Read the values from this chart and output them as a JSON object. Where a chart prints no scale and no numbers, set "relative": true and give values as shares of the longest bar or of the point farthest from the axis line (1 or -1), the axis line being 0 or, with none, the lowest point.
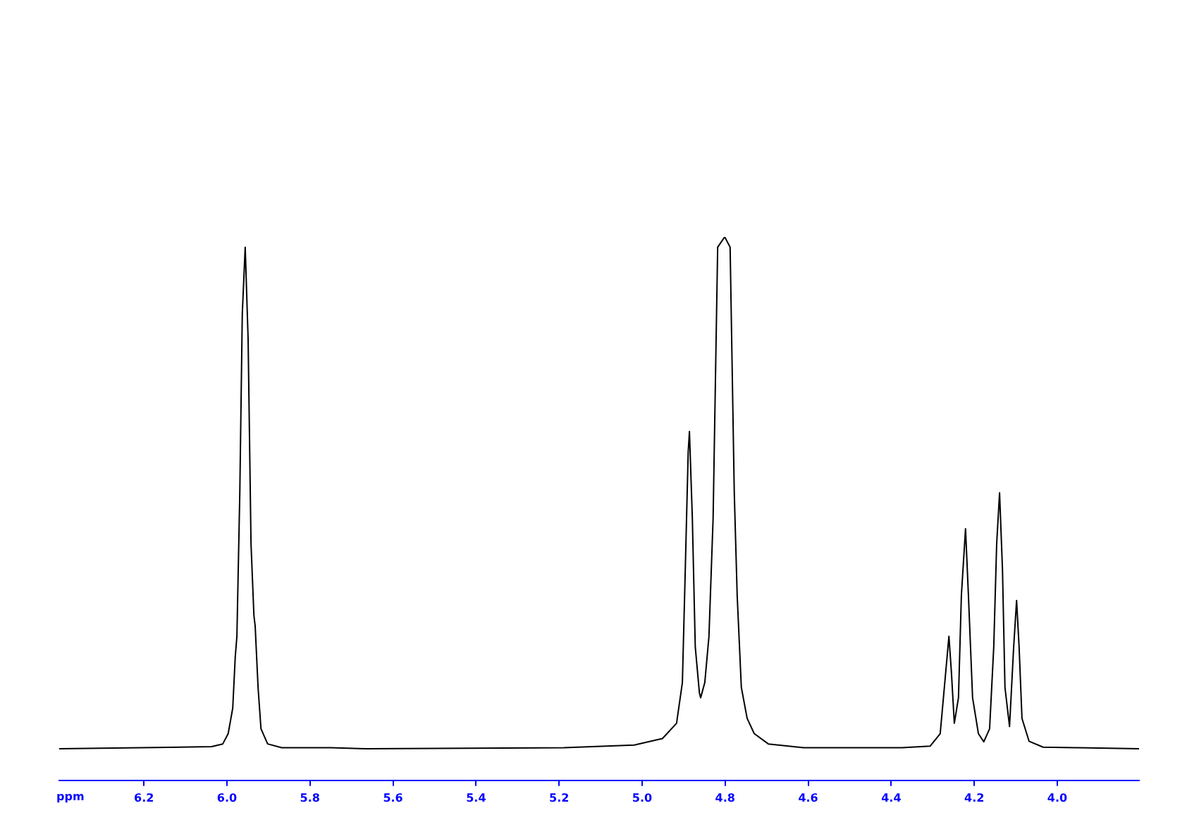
{
  "chart_data": {
    "type": "line",
    "relative": true,
    "xlabel": "ppm",
    "grid": false,
    "legend": false,
    "marker": "none",
    "line_style": "solid",
    "xlim": [
      6.404,
      3.803
    ],
    "xticks": [
      {
        "value": 6.2,
        "label": "6.2"
      },
      {
        "value": 6.0,
        "label": "6.0"
      },
      {
        "value": 5.8,
        "label": "5.8"
      },
      {
        "value": 5.6,
        "label": "5.6"
      },
      {
        "value": 5.4,
        "label": "5.4"
      },
      {
        "value": 5.2,
        "label": "5.2"
      },
      {
        "value": 5.0,
        "label": "5.0"
      },
      {
        "value": 4.8,
        "label": "4.8"
      },
      {
        "value": 4.6,
        "label": "4.6"
      },
      {
        "value": 4.4,
        "label": "4.4"
      },
      {
        "value": 4.2,
        "label": "4.2"
      },
      {
        "value": 4.0,
        "label": "4.0"
      }
    ],
    "series": [
      {
        "color": "#000000",
        "x": [
          6.404,
          6.207,
          6.037,
          6.01,
          5.997,
          5.986,
          5.98,
          5.976,
          5.969,
          5.963,
          5.956,
          5.949,
          5.942,
          5.935,
          5.932,
          5.925,
          5.918,
          5.902,
          5.868,
          5.749,
          5.664,
          5.188,
          5.019,
          4.951,
          4.917,
          4.903,
          4.896,
          4.889,
          4.886,
          4.879,
          4.872,
          4.862,
          4.859,
          4.849,
          4.839,
          4.829,
          4.818,
          4.801,
          4.788,
          4.778,
          4.771,
          4.761,
          4.747,
          4.73,
          4.696,
          4.611,
          4.374,
          4.306,
          4.282,
          4.272,
          4.261,
          4.255,
          4.248,
          4.238,
          4.231,
          4.221,
          4.214,
          4.204,
          4.19,
          4.177,
          4.163,
          4.153,
          4.146,
          4.139,
          4.132,
          4.126,
          4.115,
          4.105,
          4.098,
          4.092,
          4.085,
          4.068,
          4.034,
          3.949,
          3.803
        ],
        "values": [
          0.058,
          0.06,
          0.062,
          0.067,
          0.086,
          0.133,
          0.227,
          0.265,
          0.529,
          0.859,
          0.981,
          0.812,
          0.435,
          0.303,
          0.284,
          0.171,
          0.095,
          0.067,
          0.06,
          0.06,
          0.058,
          0.06,
          0.065,
          0.077,
          0.105,
          0.18,
          0.388,
          0.604,
          0.642,
          0.482,
          0.246,
          0.161,
          0.152,
          0.18,
          0.265,
          0.482,
          0.981,
          1,
          0.981,
          0.529,
          0.34,
          0.171,
          0.114,
          0.086,
          0.067,
          0.06,
          0.06,
          0.063,
          0.086,
          0.171,
          0.265,
          0.199,
          0.105,
          0.152,
          0.34,
          0.463,
          0.34,
          0.152,
          0.086,
          0.071,
          0.095,
          0.246,
          0.435,
          0.529,
          0.388,
          0.171,
          0.099,
          0.246,
          0.331,
          0.246,
          0.114,
          0.072,
          0.061,
          0.06,
          0.058
        ]
      }
    ]
  }
}
